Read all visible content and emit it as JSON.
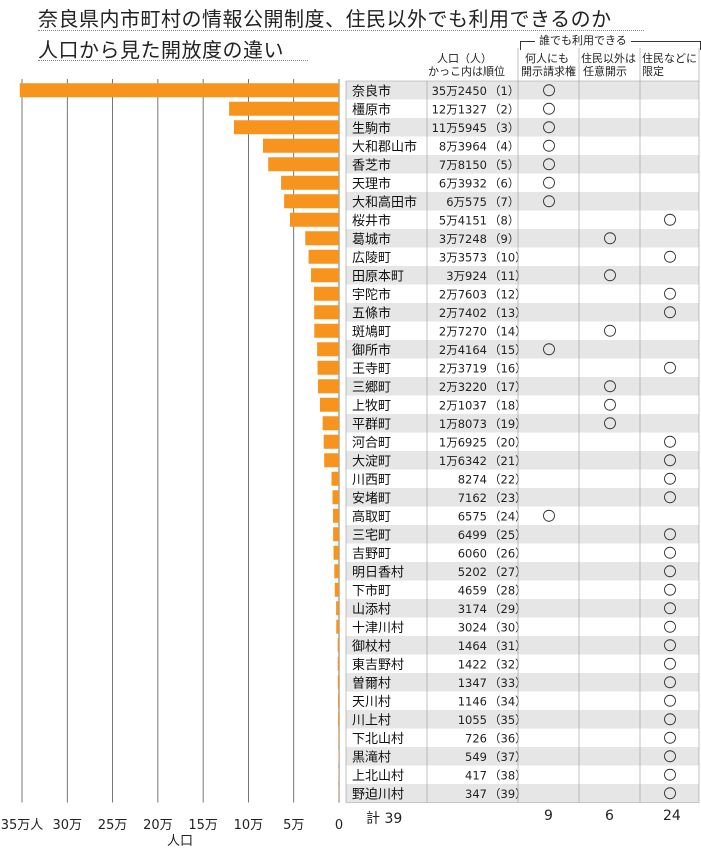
{
  "title_line1": "奈良県内市町村の情報公開制度、住民以外でも利用できるのか",
  "title_line2": "人口から見た開放度の違い",
  "headers": {
    "population": "人口（人）",
    "population_sub": "かっこ内は順位",
    "group_label": "誰でも利用できる",
    "col1_line1": "何人にも",
    "col1_line2": "開示請求権",
    "col2_line1": "住民以外は",
    "col2_line2": "任意開示",
    "col3_line1": "住民などに",
    "col3_line2": "限定"
  },
  "totals": {
    "label": "計 39",
    "col1": "9",
    "col2": "6",
    "col3": "24"
  },
  "chart_data": {
    "type": "bar",
    "orientation": "horizontal",
    "xlabel": "人口",
    "x_ticks": [
      "35万人",
      "30万",
      "25万",
      "20万",
      "15万",
      "10万",
      "5万",
      "0"
    ],
    "x_tick_values": [
      350000,
      300000,
      250000,
      200000,
      150000,
      100000,
      50000,
      0
    ],
    "xlim": [
      0,
      350000
    ],
    "bar_color": "#f7941d",
    "grid": true,
    "rows": [
      {
        "name": "奈良市",
        "pop": 352450,
        "pop_label": "35万2450",
        "rank": "（1）",
        "cat": 1
      },
      {
        "name": "橿原市",
        "pop": 121327,
        "pop_label": "12万1327",
        "rank": "（2）",
        "cat": 1
      },
      {
        "name": "生駒市",
        "pop": 115945,
        "pop_label": "11万5945",
        "rank": "（3）",
        "cat": 1
      },
      {
        "name": "大和郡山市",
        "pop": 83964,
        "pop_label": "8万3964",
        "rank": "（4）",
        "cat": 1
      },
      {
        "name": "香芝市",
        "pop": 78150,
        "pop_label": "7万8150",
        "rank": "（5）",
        "cat": 1
      },
      {
        "name": "天理市",
        "pop": 63932,
        "pop_label": "6万3932",
        "rank": "（6）",
        "cat": 1
      },
      {
        "name": "大和高田市",
        "pop": 60575,
        "pop_label": "6万575",
        "rank": "（7）",
        "cat": 1
      },
      {
        "name": "桜井市",
        "pop": 54151,
        "pop_label": "5万4151",
        "rank": "（8）",
        "cat": 3
      },
      {
        "name": "葛城市",
        "pop": 37248,
        "pop_label": "3万7248",
        "rank": "（9）",
        "cat": 2
      },
      {
        "name": "広陵町",
        "pop": 33573,
        "pop_label": "3万3573",
        "rank": "（10）",
        "cat": 3
      },
      {
        "name": "田原本町",
        "pop": 30924,
        "pop_label": "3万924",
        "rank": "（11）",
        "cat": 2
      },
      {
        "name": "宇陀市",
        "pop": 27603,
        "pop_label": "2万7603",
        "rank": "（12）",
        "cat": 3
      },
      {
        "name": "五條市",
        "pop": 27402,
        "pop_label": "2万7402",
        "rank": "（13）",
        "cat": 3
      },
      {
        "name": "斑鳩町",
        "pop": 27270,
        "pop_label": "2万7270",
        "rank": "（14）",
        "cat": 2
      },
      {
        "name": "御所市",
        "pop": 24164,
        "pop_label": "2万4164",
        "rank": "（15）",
        "cat": 1
      },
      {
        "name": "王寺町",
        "pop": 23719,
        "pop_label": "2万3719",
        "rank": "（16）",
        "cat": 3
      },
      {
        "name": "三郷町",
        "pop": 23220,
        "pop_label": "2万3220",
        "rank": "（17）",
        "cat": 2
      },
      {
        "name": "上牧町",
        "pop": 21037,
        "pop_label": "2万1037",
        "rank": "（18）",
        "cat": 2
      },
      {
        "name": "平群町",
        "pop": 18073,
        "pop_label": "1万8073",
        "rank": "（19）",
        "cat": 2
      },
      {
        "name": "河合町",
        "pop": 16925,
        "pop_label": "1万6925",
        "rank": "（20）",
        "cat": 3
      },
      {
        "name": "大淀町",
        "pop": 16342,
        "pop_label": "1万6342",
        "rank": "（21）",
        "cat": 3
      },
      {
        "name": "川西町",
        "pop": 8274,
        "pop_label": "8274",
        "rank": "（22）",
        "cat": 3
      },
      {
        "name": "安堵町",
        "pop": 7162,
        "pop_label": "7162",
        "rank": "（23）",
        "cat": 3
      },
      {
        "name": "高取町",
        "pop": 6575,
        "pop_label": "6575",
        "rank": "（24）",
        "cat": 1
      },
      {
        "name": "三宅町",
        "pop": 6499,
        "pop_label": "6499",
        "rank": "（25）",
        "cat": 3
      },
      {
        "name": "吉野町",
        "pop": 6060,
        "pop_label": "6060",
        "rank": "（26）",
        "cat": 3
      },
      {
        "name": "明日香村",
        "pop": 5202,
        "pop_label": "5202",
        "rank": "（27）",
        "cat": 3
      },
      {
        "name": "下市町",
        "pop": 4659,
        "pop_label": "4659",
        "rank": "（28）",
        "cat": 3
      },
      {
        "name": "山添村",
        "pop": 3174,
        "pop_label": "3174",
        "rank": "（29）",
        "cat": 3
      },
      {
        "name": "十津川村",
        "pop": 3024,
        "pop_label": "3024",
        "rank": "（30）",
        "cat": 3
      },
      {
        "name": "御杖村",
        "pop": 1464,
        "pop_label": "1464",
        "rank": "（31）",
        "cat": 3
      },
      {
        "name": "東吉野村",
        "pop": 1422,
        "pop_label": "1422",
        "rank": "（32）",
        "cat": 3
      },
      {
        "name": "曽爾村",
        "pop": 1347,
        "pop_label": "1347",
        "rank": "（33）",
        "cat": 3
      },
      {
        "name": "天川村",
        "pop": 1146,
        "pop_label": "1146",
        "rank": "（34）",
        "cat": 3
      },
      {
        "name": "川上村",
        "pop": 1055,
        "pop_label": "1055",
        "rank": "（35）",
        "cat": 3
      },
      {
        "name": "下北山村",
        "pop": 726,
        "pop_label": "726",
        "rank": "（36）",
        "cat": 3
      },
      {
        "name": "黒滝村",
        "pop": 549,
        "pop_label": "549",
        "rank": "（37）",
        "cat": 3
      },
      {
        "name": "上北山村",
        "pop": 417,
        "pop_label": "417",
        "rank": "（38）",
        "cat": 3
      },
      {
        "name": "野迫川村",
        "pop": 347,
        "pop_label": "347",
        "rank": "（39）",
        "cat": 3
      }
    ]
  }
}
